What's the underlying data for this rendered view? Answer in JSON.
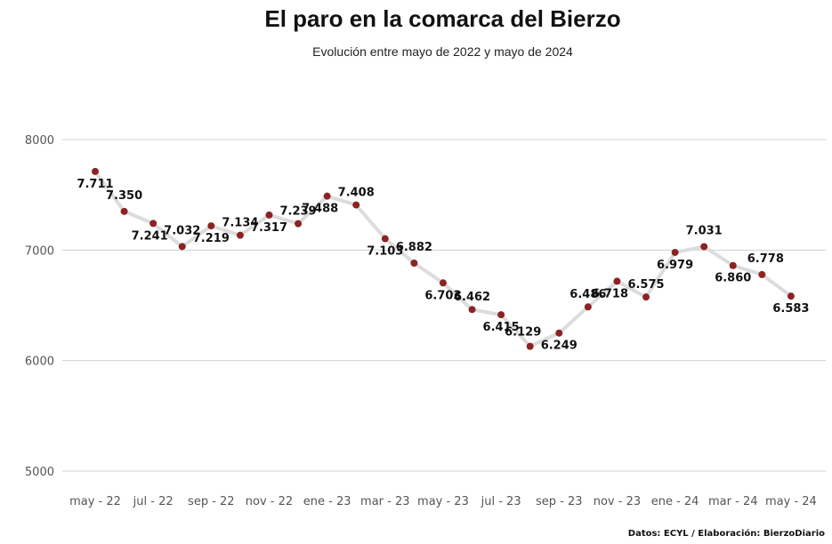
{
  "chart_data": {
    "type": "line",
    "title": "El paro en la comarca del Bierzo",
    "subtitle": "Evolución entre mayo de 2022 y mayo de 2024",
    "source": "Datos: ECYL / Elaboración: BierzoDiario",
    "xlabel": "",
    "ylabel": "",
    "ylim": [
      5000,
      8000
    ],
    "yticks": [
      "5000",
      "6000",
      "7000",
      "8000"
    ],
    "x_tick_labels": [
      "may - 22",
      "jul - 22",
      "sep - 22",
      "nov - 22",
      "ene - 23",
      "mar - 23",
      "may - 23",
      "jul - 23",
      "sep - 23",
      "nov - 23",
      "ene - 24",
      "mar - 24",
      "may - 24"
    ],
    "grid": true,
    "line_color": "#dcdcdc",
    "marker_color": "#8b2323",
    "series": [
      {
        "values": [
          7711,
          7350,
          7241,
          7032,
          7219,
          7134,
          7317,
          7239,
          7488,
          7408,
          7103,
          6882,
          6703,
          6462,
          6415,
          6129,
          6249,
          6486,
          6718,
          6575,
          6979,
          7031,
          6860,
          6778,
          6583
        ],
        "labels": [
          "7.711",
          "7.350",
          "7.241",
          "7.032",
          "7.219",
          "7.134",
          "7.317",
          "7.239",
          "7.488",
          "7.408",
          "7.103",
          "6.882",
          "6.703",
          "6.462",
          "6.415",
          "6.129",
          "6.249",
          "6.486",
          "6.718",
          "6.575",
          "6.979",
          "7.031",
          "6.860",
          "6.778",
          "6.583"
        ]
      }
    ]
  }
}
